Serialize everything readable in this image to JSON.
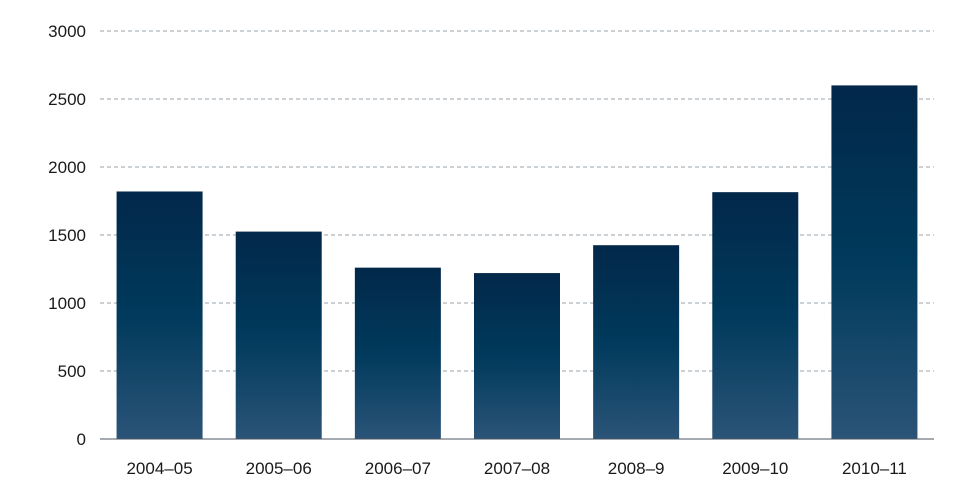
{
  "chart_data": {
    "type": "bar",
    "categories": [
      "2004–05",
      "2005–06",
      "2006–07",
      "2007–08",
      "2008–9",
      "2009–10",
      "2010–11"
    ],
    "values": [
      1820,
      1525,
      1260,
      1220,
      1425,
      1815,
      2600
    ],
    "title": "",
    "xlabel": "",
    "ylabel": "",
    "ylim": [
      0,
      3000
    ],
    "yticks": [
      "0",
      "500",
      "1000",
      "1500",
      "2000",
      "2500",
      "3000"
    ],
    "grid": true,
    "grid_style": "dashed",
    "legend": "none",
    "colors": {
      "bar_top": "#02284a",
      "bar_mid": "#003a5c",
      "bar_bottom": "#2a5478",
      "grid": "#9aa3ab",
      "axis": "#4a5560",
      "text": "#1a1a1a"
    }
  }
}
